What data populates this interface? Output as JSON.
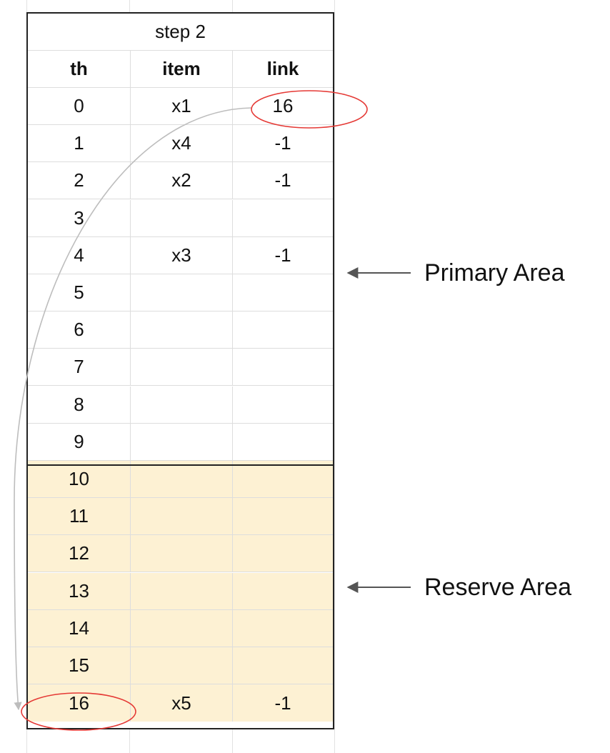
{
  "table": {
    "title": "step 2",
    "headers": [
      "th",
      "item",
      "link"
    ],
    "rows": [
      [
        "0",
        "x1",
        "16"
      ],
      [
        "1",
        "x4",
        "-1"
      ],
      [
        "2",
        "x2",
        "-1"
      ],
      [
        "3",
        "",
        ""
      ],
      [
        "4",
        "x3",
        "-1"
      ],
      [
        "5",
        "",
        ""
      ],
      [
        "6",
        "",
        ""
      ],
      [
        "7",
        "",
        ""
      ],
      [
        "8",
        "",
        ""
      ],
      [
        "9",
        "",
        ""
      ],
      [
        "10",
        "",
        ""
      ],
      [
        "11",
        "",
        ""
      ],
      [
        "12",
        "",
        ""
      ],
      [
        "13",
        "",
        ""
      ],
      [
        "14",
        "",
        ""
      ],
      [
        "15",
        "",
        ""
      ],
      [
        "16",
        "x5",
        "-1"
      ]
    ],
    "reserve_start_index": 10
  },
  "labels": {
    "primary": "Primary Area",
    "reserve": "Reserve Area"
  },
  "colors": {
    "reserve_fill": "#fdf1d3",
    "highlight_circle": "#e53935",
    "link_arrow": "#bdbdbd",
    "label_arrow": "#555555"
  }
}
